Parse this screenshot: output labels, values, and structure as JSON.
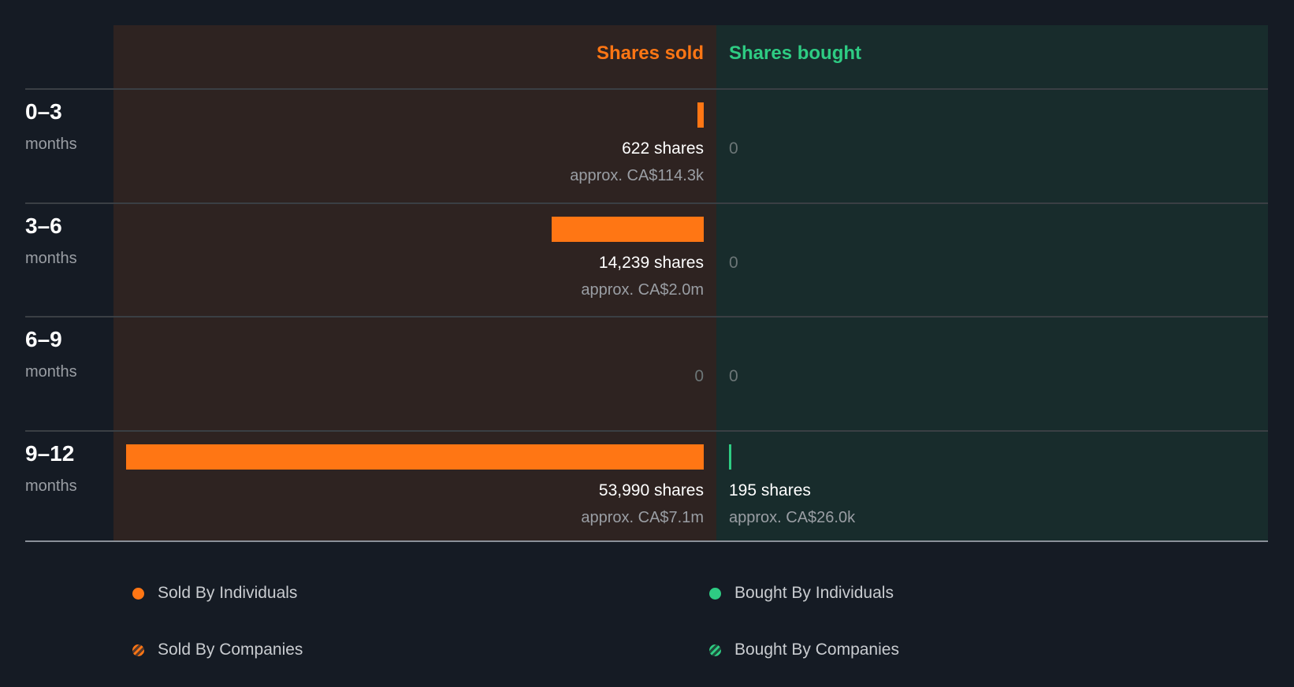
{
  "chart_data": {
    "type": "bar",
    "orientation": "diverging-horizontal",
    "headers": {
      "sold": "Shares sold",
      "bought": "Shares bought"
    },
    "unit_label": "months",
    "max_value": 53990,
    "rows": [
      {
        "period": "0–3",
        "sold": 622,
        "sold_label": "622 shares",
        "sold_approx": "approx. CA$114.3k",
        "bought": 0,
        "bought_label": "0",
        "bought_approx": ""
      },
      {
        "period": "3–6",
        "sold": 14239,
        "sold_label": "14,239 shares",
        "sold_approx": "approx. CA$2.0m",
        "bought": 0,
        "bought_label": "0",
        "bought_approx": ""
      },
      {
        "period": "6–9",
        "sold": 0,
        "sold_label": "0",
        "sold_approx": "",
        "bought": 0,
        "bought_label": "0",
        "bought_approx": ""
      },
      {
        "period": "9–12",
        "sold": 53990,
        "sold_label": "53,990 shares",
        "sold_approx": "approx. CA$7.1m",
        "bought": 195,
        "bought_label": "195 shares",
        "bought_approx": "approx. CA$26.0k"
      }
    ],
    "legend": [
      {
        "label": "Sold By Individuals",
        "color": "#ff7614",
        "pattern": "solid"
      },
      {
        "label": "Bought By Individuals",
        "color": "#2ecc83",
        "pattern": "solid"
      },
      {
        "label": "Sold By Companies",
        "color": "#ff7614",
        "pattern": "striped"
      },
      {
        "label": "Bought By Companies",
        "color": "#2ecc83",
        "pattern": "striped"
      }
    ]
  }
}
